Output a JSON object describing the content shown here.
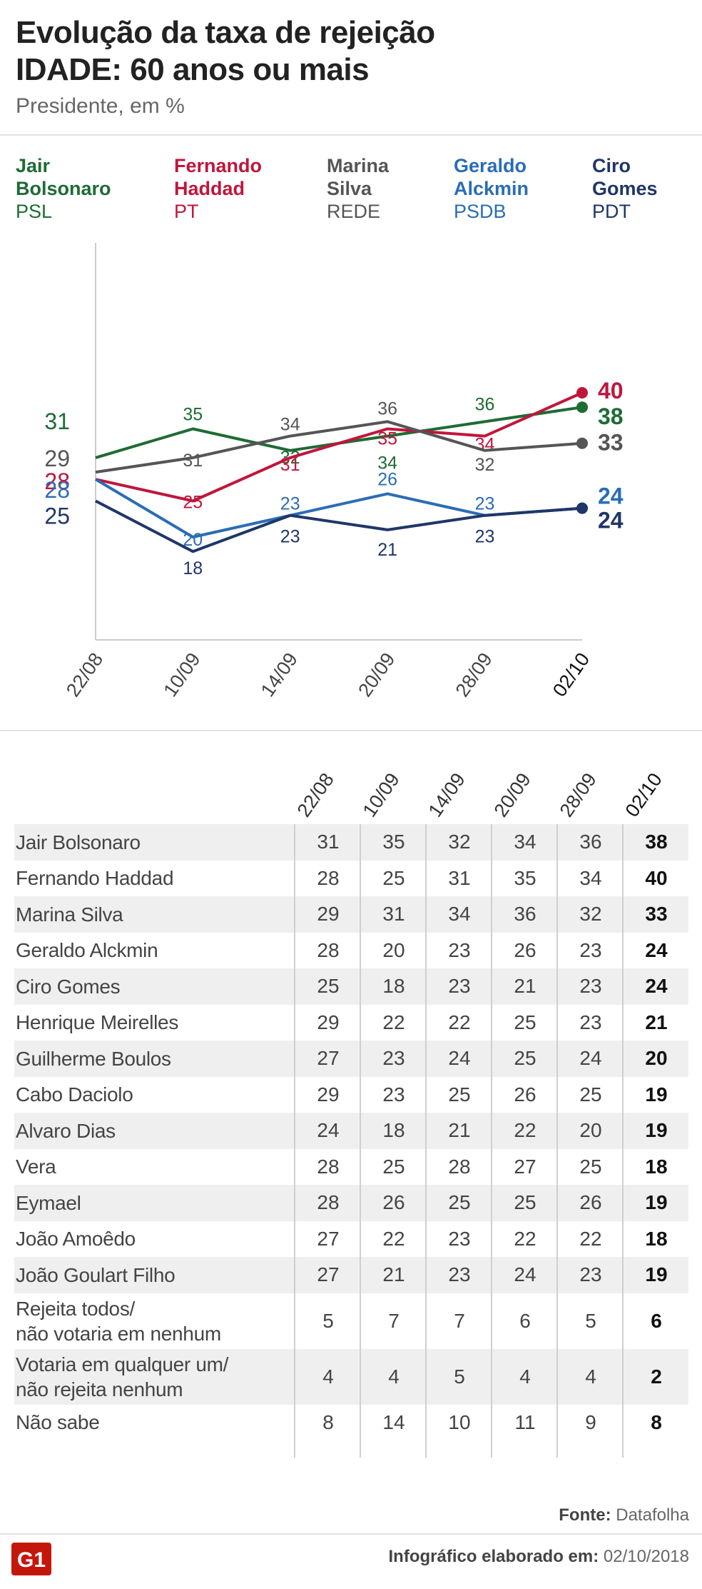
{
  "header": {
    "title_line1": "Evolução da taxa de rejeição",
    "title_line2": "IDADE: 60 anos ou mais",
    "subtitle": "Presidente, em %"
  },
  "legend": [
    {
      "name": "Jair\nBolsonaro",
      "party": "PSL",
      "color": "#1e6b34"
    },
    {
      "name": "Fernando\nHaddad",
      "party": "PT",
      "color": "#c0163c"
    },
    {
      "name": "Marina\nSilva",
      "party": "REDE",
      "color": "#555555"
    },
    {
      "name": "Geraldo\nAlckmin",
      "party": "PSDB",
      "color": "#2a6db5"
    },
    {
      "name": "Ciro\nGomes",
      "party": "PDT",
      "color": "#1f3668"
    }
  ],
  "chart_data": {
    "type": "line",
    "x": [
      "22/08",
      "10/09",
      "14/09",
      "20/09",
      "28/09",
      "02/10"
    ],
    "ylim": [
      0,
      60
    ],
    "grid": false,
    "series": [
      {
        "name": "Jair Bolsonaro",
        "color": "#1e6b34",
        "values": [
          31,
          35,
          32,
          34,
          36,
          38
        ]
      },
      {
        "name": "Fernando Haddad",
        "color": "#c0163c",
        "values": [
          28,
          25,
          31,
          35,
          34,
          40
        ]
      },
      {
        "name": "Marina Silva",
        "color": "#555555",
        "values": [
          29,
          31,
          34,
          36,
          32,
          33
        ]
      },
      {
        "name": "Geraldo Alckmin",
        "color": "#2a6db5",
        "values": [
          28,
          20,
          23,
          26,
          23,
          24
        ]
      },
      {
        "name": "Ciro Gomes",
        "color": "#1f3668",
        "values": [
          25,
          18,
          23,
          21,
          23,
          24
        ]
      }
    ]
  },
  "table": {
    "columns": [
      "22/08",
      "10/09",
      "14/09",
      "20/09",
      "28/09",
      "02/10"
    ],
    "rows": [
      {
        "label": "Jair Bolsonaro",
        "values": [
          "31",
          "35",
          "32",
          "34",
          "36",
          "38"
        ]
      },
      {
        "label": "Fernando Haddad",
        "values": [
          "28",
          "25",
          "31",
          "35",
          "34",
          "40"
        ]
      },
      {
        "label": "Marina Silva",
        "values": [
          "29",
          "31",
          "34",
          "36",
          "32",
          "33"
        ]
      },
      {
        "label": "Geraldo Alckmin",
        "values": [
          "28",
          "20",
          "23",
          "26",
          "23",
          "24"
        ]
      },
      {
        "label": "Ciro Gomes",
        "values": [
          "25",
          "18",
          "23",
          "21",
          "23",
          "24"
        ]
      },
      {
        "label": "Henrique Meirelles",
        "values": [
          "29",
          "22",
          "22",
          "25",
          "23",
          "21"
        ]
      },
      {
        "label": "Guilherme Boulos",
        "values": [
          "27",
          "23",
          "24",
          "25",
          "24",
          "20"
        ]
      },
      {
        "label": "Cabo Daciolo",
        "values": [
          "29",
          "23",
          "25",
          "26",
          "25",
          "19"
        ]
      },
      {
        "label": "Alvaro Dias",
        "values": [
          "24",
          "18",
          "21",
          "22",
          "20",
          "19"
        ]
      },
      {
        "label": "Vera",
        "values": [
          "28",
          "25",
          "28",
          "27",
          "25",
          "18"
        ]
      },
      {
        "label": "Eymael",
        "values": [
          "28",
          "26",
          "25",
          "25",
          "26",
          "19"
        ]
      },
      {
        "label": "João Amoêdo",
        "values": [
          "27",
          "22",
          "23",
          "22",
          "22",
          "18"
        ]
      },
      {
        "label": "João Goulart Filho",
        "values": [
          "27",
          "21",
          "23",
          "24",
          "23",
          "19"
        ]
      },
      {
        "label": "Rejeita todos/\nnão votaria em nenhum",
        "values": [
          "5",
          "7",
          "7",
          "6",
          "5",
          "6"
        ]
      },
      {
        "label": "Votaria em qualquer um/\nnão rejeita nenhum",
        "values": [
          "4",
          "4",
          "5",
          "4",
          "4",
          "2"
        ]
      },
      {
        "label": "Não sabe",
        "values": [
          "8",
          "14",
          "10",
          "11",
          "9",
          "8"
        ]
      }
    ]
  },
  "footer": {
    "source_label": "Fonte:",
    "source_value": "Datafolha",
    "credit_label": "Infográfico elaborado em:",
    "credit_value": "02/10/2018",
    "logo_text": "G1",
    "logo_color": "#c4170c"
  }
}
